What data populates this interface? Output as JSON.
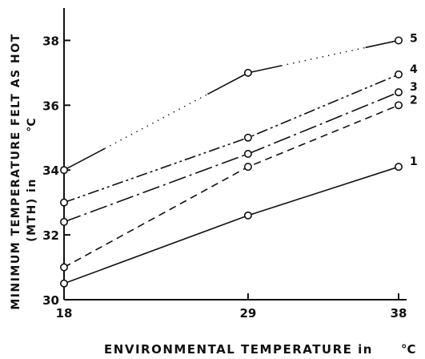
{
  "chart_data": {
    "type": "line",
    "title": "",
    "xlabel": "ENVIRONMENTAL TEMPERATURE in",
    "xlabel_unit": "°C",
    "ylabel_line1": "MINIMUM TEMPERATURE FELT AS HOT",
    "ylabel_line2": "(MTH) in",
    "ylabel_unit": "°C",
    "xlim": [
      18,
      38
    ],
    "ylim": [
      30,
      39
    ],
    "xticks": [
      18,
      29,
      38
    ],
    "yticks": [
      30,
      32,
      34,
      36,
      38
    ],
    "grid": false,
    "legend": "none",
    "x": [
      18,
      29,
      38
    ],
    "series": [
      {
        "name": "1",
        "values": [
          30.5,
          32.6,
          34.1
        ],
        "style": "solid"
      },
      {
        "name": "2",
        "values": [
          31.0,
          34.1,
          36.0
        ],
        "style": "dashed"
      },
      {
        "name": "3",
        "values": [
          32.4,
          34.5,
          36.4
        ],
        "style": "longdash-dot"
      },
      {
        "name": "4",
        "values": [
          33.0,
          35.0,
          36.95
        ],
        "style": "dash-dot-dot"
      },
      {
        "name": "5",
        "values": [
          34.0,
          37.0,
          38.0
        ],
        "style": "solid-dotted"
      }
    ]
  }
}
